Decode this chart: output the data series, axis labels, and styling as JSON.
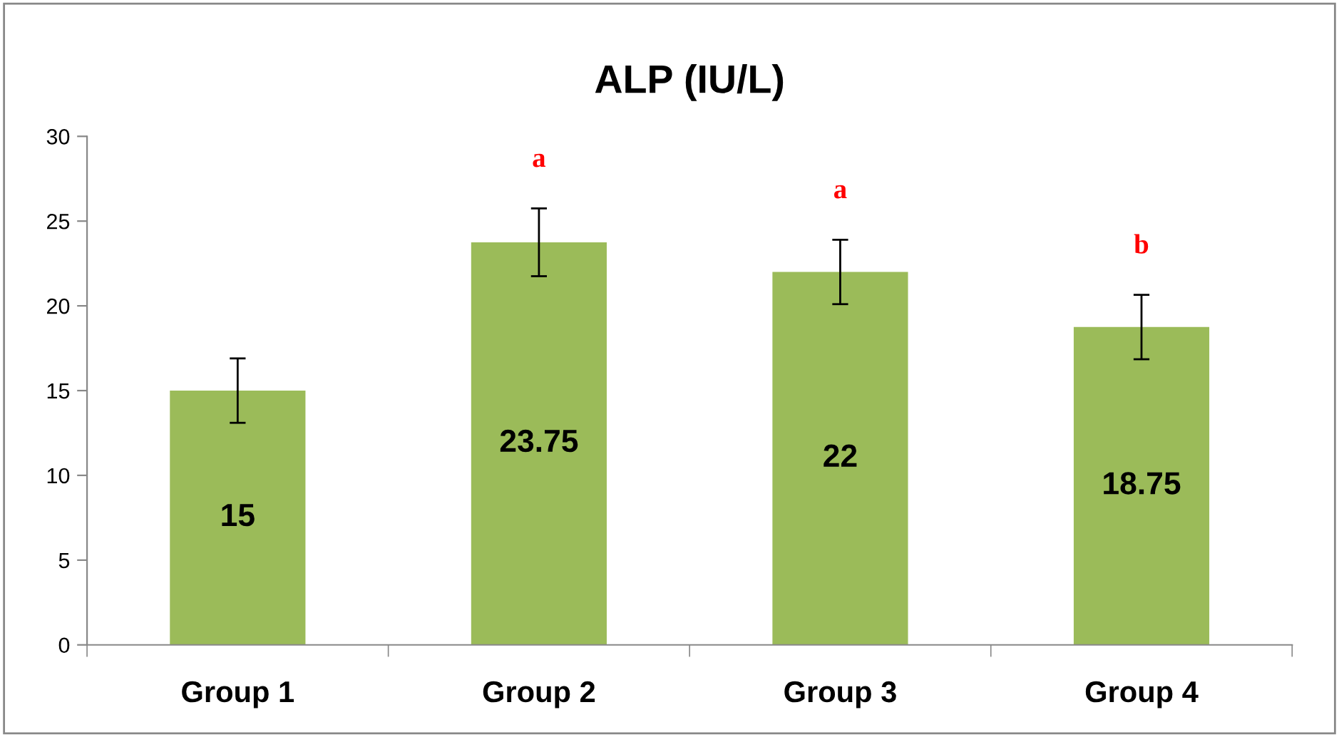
{
  "chart_data": {
    "type": "bar",
    "title": "ALP (IU/L)",
    "categories": [
      "Group 1",
      "Group 2",
      "Group 3",
      "Group 4"
    ],
    "values": [
      15,
      23.75,
      22,
      18.75
    ],
    "errors": [
      1.9,
      2,
      1.9,
      1.9
    ],
    "color": "#9bbb59",
    "data_labels": true,
    "ylim": [
      0,
      30
    ],
    "yticks": [
      0,
      5,
      10,
      15,
      20,
      25,
      30
    ],
    "grid": false,
    "legend": false,
    "annotations": [
      "a",
      "a",
      "b"
    ]
  }
}
